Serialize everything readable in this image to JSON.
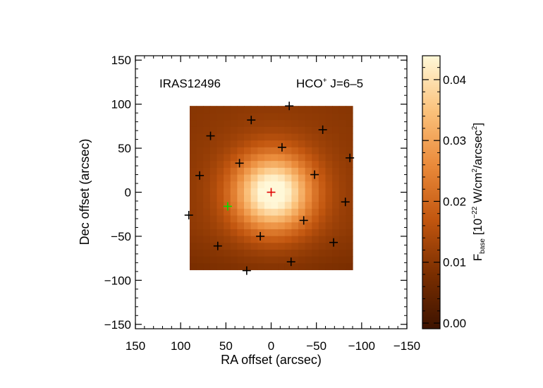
{
  "chart_data": {
    "type": "heatmap",
    "annotations": {
      "source": "IRAS12496",
      "line_prefix": "HCO",
      "line_sup": "+",
      "line_suffix": " J=6–5"
    },
    "xlabel": "RA offset (arcsec)",
    "ylabel": "Dec offset (arcsec)",
    "xlim": [
      150,
      -150
    ],
    "ylim": [
      -155,
      155
    ],
    "xticks": [
      {
        "v": 150,
        "label": "150"
      },
      {
        "v": 100,
        "label": "100"
      },
      {
        "v": 50,
        "label": "50"
      },
      {
        "v": 0,
        "label": "0"
      },
      {
        "v": -50,
        "label": "−50"
      },
      {
        "v": -100,
        "label": "−100"
      },
      {
        "v": -150,
        "label": "−150"
      }
    ],
    "yticks": [
      {
        "v": 150,
        "label": "150"
      },
      {
        "v": 100,
        "label": "100"
      },
      {
        "v": 50,
        "label": "50"
      },
      {
        "v": 0,
        "label": "0"
      },
      {
        "v": -50,
        "label": "−50"
      },
      {
        "v": -100,
        "label": "−100"
      },
      {
        "v": -150,
        "label": "−150"
      }
    ],
    "map": {
      "x_range": [
        90,
        -90
      ],
      "y_range": [
        -88,
        98
      ],
      "peak_value": 0.043,
      "min_value": 0.009,
      "peak_position": [
        -2,
        0
      ],
      "note_shape": "gaussian-like peak near center, darker toward edges"
    },
    "points_black": [
      [
        -20,
        98
      ],
      [
        22,
        82
      ],
      [
        67,
        64
      ],
      [
        -57,
        71
      ],
      [
        -12,
        51
      ],
      [
        35,
        33
      ],
      [
        -87,
        39
      ],
      [
        79,
        19
      ],
      [
        -48,
        20
      ],
      [
        -82,
        -11
      ],
      [
        91,
        -26
      ],
      [
        -36,
        -32
      ],
      [
        12,
        -50
      ],
      [
        59,
        -61
      ],
      [
        -69,
        -57
      ],
      [
        -22,
        -79
      ],
      [
        27,
        -89
      ]
    ],
    "point_red": [
      0,
      0
    ],
    "point_green": [
      48,
      -16
    ],
    "colorbar": {
      "label_main": "F",
      "label_sub": "base",
      "label_unit_pre": " [10",
      "label_exp": "−22",
      "label_unit_mid": " W/cm",
      "label_exp2": "2",
      "label_unit_mid2": "/arcsec",
      "label_exp3": "2",
      "label_unit_post": "]",
      "range": [
        0.0,
        0.043
      ],
      "ticks": [
        {
          "v": 0.0,
          "label": "0.00"
        },
        {
          "v": 0.01,
          "label": "0.01"
        },
        {
          "v": 0.02,
          "label": "0.02"
        },
        {
          "v": 0.03,
          "label": "0.03"
        },
        {
          "v": 0.04,
          "label": "0.04"
        }
      ],
      "colors": [
        "#3d1300",
        "#7a2e00",
        "#c2560f",
        "#ea8a3a",
        "#fbc27c",
        "#fff8d8"
      ]
    }
  }
}
